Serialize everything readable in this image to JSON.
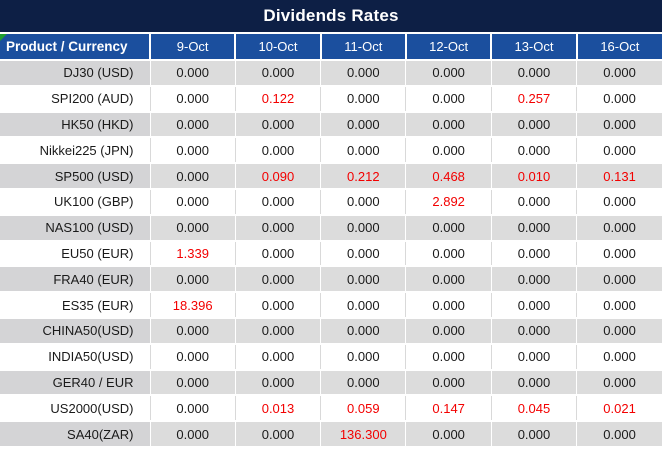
{
  "title": "Dividends Rates",
  "colors": {
    "title_bg": "#0d1f45",
    "header_bg": "#1b4f9e",
    "row_gray": "#dcdcdc",
    "row_gray_product": "#d4d4d6",
    "negative_value_red": "#f30000",
    "text": "#1a1a1a",
    "indicator_green": "#1f9e2f"
  },
  "chart_data": {
    "type": "table",
    "title": "Dividends Rates",
    "columns": [
      "Product / Currency",
      "9-Oct",
      "10-Oct",
      "11-Oct",
      "12-Oct",
      "13-Oct",
      "16-Oct"
    ],
    "rows": [
      {
        "product": "DJ30 (USD)",
        "values": [
          "0.000",
          "0.000",
          "0.000",
          "0.000",
          "0.000",
          "0.000"
        ],
        "red": [
          false,
          false,
          false,
          false,
          false,
          false
        ]
      },
      {
        "product": "SPI200 (AUD)",
        "values": [
          "0.000",
          "0.122",
          "0.000",
          "0.000",
          "0.257",
          "0.000"
        ],
        "red": [
          false,
          true,
          false,
          false,
          true,
          false
        ]
      },
      {
        "product": "HK50 (HKD)",
        "values": [
          "0.000",
          "0.000",
          "0.000",
          "0.000",
          "0.000",
          "0.000"
        ],
        "red": [
          false,
          false,
          false,
          false,
          false,
          false
        ]
      },
      {
        "product": "Nikkei225 (JPN)",
        "values": [
          "0.000",
          "0.000",
          "0.000",
          "0.000",
          "0.000",
          "0.000"
        ],
        "red": [
          false,
          false,
          false,
          false,
          false,
          false
        ]
      },
      {
        "product": "SP500 (USD)",
        "values": [
          "0.000",
          "0.090",
          "0.212",
          "0.468",
          "0.010",
          "0.131"
        ],
        "red": [
          false,
          true,
          true,
          true,
          true,
          true
        ]
      },
      {
        "product": "UK100 (GBP)",
        "values": [
          "0.000",
          "0.000",
          "0.000",
          "2.892",
          "0.000",
          "0.000"
        ],
        "red": [
          false,
          false,
          false,
          true,
          false,
          false
        ]
      },
      {
        "product": "NAS100 (USD)",
        "values": [
          "0.000",
          "0.000",
          "0.000",
          "0.000",
          "0.000",
          "0.000"
        ],
        "red": [
          false,
          false,
          false,
          false,
          false,
          false
        ]
      },
      {
        "product": "EU50 (EUR)",
        "values": [
          "1.339",
          "0.000",
          "0.000",
          "0.000",
          "0.000",
          "0.000"
        ],
        "red": [
          true,
          false,
          false,
          false,
          false,
          false
        ]
      },
      {
        "product": "FRA40 (EUR)",
        "values": [
          "0.000",
          "0.000",
          "0.000",
          "0.000",
          "0.000",
          "0.000"
        ],
        "red": [
          false,
          false,
          false,
          false,
          false,
          false
        ]
      },
      {
        "product": "ES35 (EUR)",
        "values": [
          "18.396",
          "0.000",
          "0.000",
          "0.000",
          "0.000",
          "0.000"
        ],
        "red": [
          true,
          false,
          false,
          false,
          false,
          false
        ]
      },
      {
        "product": "CHINA50(USD)",
        "values": [
          "0.000",
          "0.000",
          "0.000",
          "0.000",
          "0.000",
          "0.000"
        ],
        "red": [
          false,
          false,
          false,
          false,
          false,
          false
        ]
      },
      {
        "product": "INDIA50(USD)",
        "values": [
          "0.000",
          "0.000",
          "0.000",
          "0.000",
          "0.000",
          "0.000"
        ],
        "red": [
          false,
          false,
          false,
          false,
          false,
          false
        ]
      },
      {
        "product": "GER40 / EUR",
        "values": [
          "0.000",
          "0.000",
          "0.000",
          "0.000",
          "0.000",
          "0.000"
        ],
        "red": [
          false,
          false,
          false,
          false,
          false,
          false
        ]
      },
      {
        "product": "US2000(USD)",
        "values": [
          "0.000",
          "0.013",
          "0.059",
          "0.147",
          "0.045",
          "0.021"
        ],
        "red": [
          false,
          true,
          true,
          true,
          true,
          true
        ]
      },
      {
        "product": "SA40(ZAR)",
        "values": [
          "0.000",
          "0.000",
          "136.300",
          "0.000",
          "0.000",
          "0.000"
        ],
        "red": [
          false,
          false,
          true,
          false,
          false,
          false
        ]
      }
    ]
  }
}
